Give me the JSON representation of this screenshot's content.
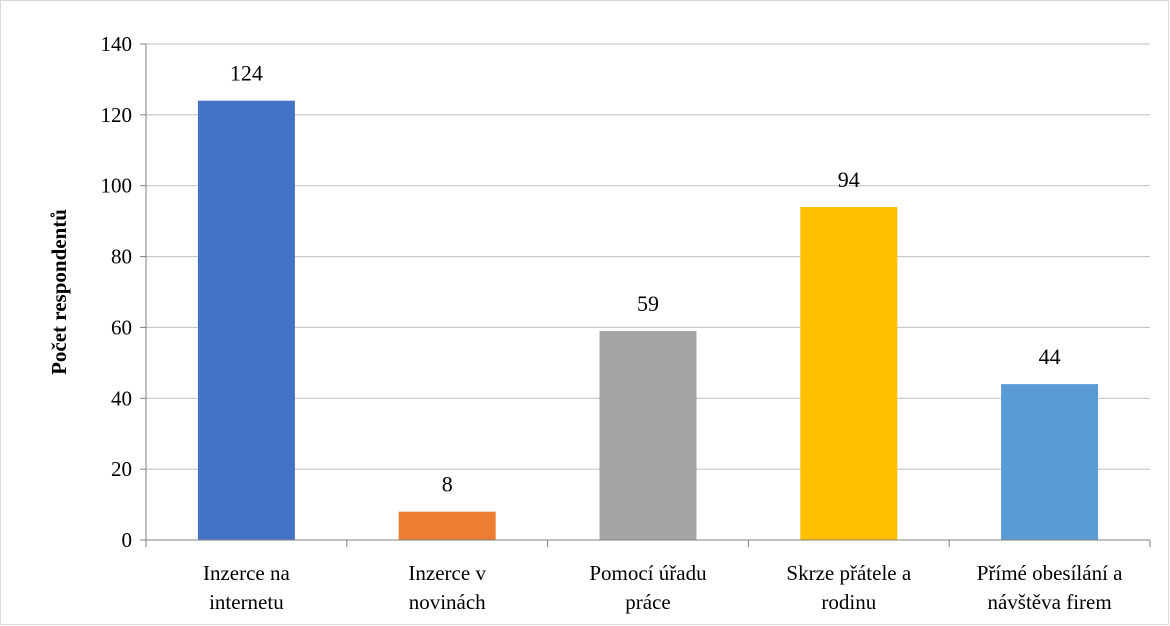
{
  "chart_data": {
    "type": "bar",
    "categories": [
      [
        "Inzerce na",
        "internetu"
      ],
      [
        "Inzerce v",
        "novinách"
      ],
      [
        "Pomocí úřadu",
        "práce"
      ],
      [
        "Skrze přátele a",
        "rodinu"
      ],
      [
        "Přímé obesílání a",
        "návštěva firem"
      ]
    ],
    "values": [
      124,
      8,
      59,
      94,
      44
    ],
    "data_labels": [
      "124",
      "8",
      "59",
      "94",
      "44"
    ],
    "colors": [
      "#4472c4",
      "#ed7d31",
      "#a5a5a5",
      "#ffc000",
      "#5b9bd5"
    ],
    "title": "",
    "xlabel": "",
    "ylabel": "Počet respondentů",
    "ylim": [
      0,
      140
    ],
    "yticks": [
      0,
      20,
      40,
      60,
      80,
      100,
      120,
      140
    ],
    "ytick_labels": [
      "0",
      "20",
      "40",
      "60",
      "80",
      "100",
      "120",
      "140"
    ],
    "grid": true,
    "gridline_color": "#bfbfbf",
    "axis_color": "#808080",
    "legend": "none"
  }
}
